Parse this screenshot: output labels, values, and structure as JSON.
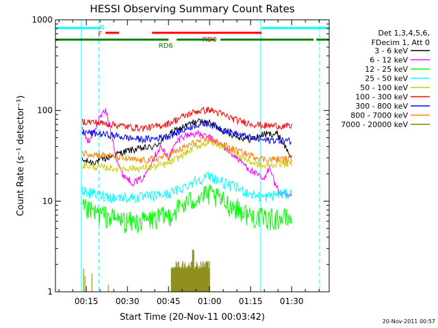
{
  "chart_data": {
    "type": "line",
    "title": "HESSI Observing Summary Count Rates",
    "xlabel": "Start Time (20-Nov-11 00:03:42)",
    "ylabel": "Count Rate (s⁻¹ detector⁻¹)",
    "y_scale": "log",
    "ylim": [
      1,
      1000
    ],
    "xlim_minutes": [
      3.7,
      103.7
    ],
    "x_tick_labels": [
      "00:15",
      "00:30",
      "00:45",
      "01:00",
      "01:15",
      "01:30"
    ],
    "x_tick_minutes": [
      15,
      30,
      45,
      60,
      75,
      90
    ],
    "y_tick_labels": [
      "1",
      "10",
      "100",
      "1000"
    ],
    "y_tick_values": [
      1,
      10,
      100,
      1000
    ],
    "legend_header": [
      "Det 1,3,4,5,6,",
      "FDecim 1, Att 0"
    ],
    "legend_position": "right",
    "series": [
      {
        "name": "3 - 6 keV",
        "color": "#000000",
        "x": [
          13.5,
          17,
          20,
          25,
          30,
          35,
          40,
          45,
          50,
          55,
          60,
          65,
          70,
          75,
          80,
          85,
          90
        ],
        "values": [
          28,
          27,
          28,
          32,
          36,
          38,
          40,
          55,
          65,
          76,
          73,
          60,
          52,
          48,
          55,
          55,
          30
        ]
      },
      {
        "name": "6 - 12 keV",
        "color": "#ff00ff",
        "x": [
          13.5,
          16,
          18,
          20,
          22,
          24,
          26,
          28,
          32,
          36,
          38,
          42,
          45,
          48,
          50,
          55,
          60,
          65,
          70,
          75,
          80,
          82,
          84,
          86,
          90
        ],
        "values": [
          60,
          45,
          60,
          85,
          100,
          60,
          30,
          20,
          16,
          18,
          25,
          40,
          30,
          45,
          52,
          56,
          50,
          40,
          30,
          22,
          17,
          25,
          15,
          12,
          11
        ]
      },
      {
        "name": "12 - 25 keV",
        "color": "#00ff00",
        "x": [
          13.5,
          18,
          25,
          30,
          35,
          40,
          45,
          50,
          55,
          60,
          65,
          70,
          75,
          80,
          85,
          90
        ],
        "values": [
          8.5,
          7.5,
          6.5,
          6,
          6,
          6.5,
          7,
          9,
          11,
          12,
          10,
          8.5,
          7,
          6.5,
          6.5,
          6.5
        ]
      },
      {
        "name": "25 - 50 keV",
        "color": "#00ffff",
        "x": [
          13.5,
          18,
          25,
          30,
          35,
          40,
          45,
          50,
          55,
          60,
          65,
          70,
          75,
          80,
          85,
          90
        ],
        "values": [
          13,
          12,
          11,
          11,
          11,
          11.5,
          12,
          14,
          17,
          19,
          16,
          14,
          12,
          11,
          12,
          12
        ]
      },
      {
        "name": "50 - 100 keV",
        "color": "#cccc00",
        "x": [
          13.5,
          18,
          25,
          30,
          35,
          40,
          45,
          50,
          55,
          60,
          65,
          70,
          75,
          80,
          85,
          90
        ],
        "values": [
          25,
          24,
          23,
          23,
          23,
          24,
          26,
          32,
          40,
          45,
          40,
          33,
          27,
          24,
          26,
          26
        ]
      },
      {
        "name": "100 - 300 keV",
        "color": "#ff0000",
        "x": [
          13.5,
          18,
          25,
          30,
          35,
          40,
          45,
          50,
          55,
          60,
          65,
          70,
          75,
          80,
          85,
          90
        ],
        "values": [
          76,
          74,
          70,
          66,
          64,
          66,
          72,
          85,
          98,
          102,
          90,
          78,
          72,
          68,
          68,
          66
        ]
      },
      {
        "name": "300 - 800 keV",
        "color": "#0000ff",
        "x": [
          13.5,
          18,
          25,
          30,
          35,
          40,
          45,
          50,
          55,
          60,
          65,
          70,
          75,
          80,
          85,
          90
        ],
        "values": [
          58,
          56,
          53,
          50,
          48,
          49,
          52,
          60,
          70,
          72,
          62,
          55,
          50,
          47,
          47,
          46
        ]
      },
      {
        "name": "800 - 7000 keV",
        "color": "#ff8000",
        "x": [
          13.5,
          18,
          25,
          30,
          35,
          40,
          45,
          50,
          55,
          60,
          65,
          70,
          75,
          80,
          85,
          90
        ],
        "values": [
          34,
          33,
          31,
          29,
          28,
          29,
          32,
          38,
          45,
          48,
          42,
          36,
          32,
          29,
          29,
          29
        ]
      },
      {
        "name": "7000 - 20000 keV",
        "color": "#808000",
        "x": [
          14,
          14.5,
          17,
          23,
          46,
          48,
          50,
          52,
          54,
          56,
          58,
          60
        ],
        "values": [
          1.8,
          1.5,
          1.6,
          1.2,
          2,
          2,
          2,
          2.2,
          2.9,
          2,
          2,
          2
        ]
      }
    ],
    "state_bars": [
      {
        "label": "N",
        "color": "#00ffff",
        "segments": [
          [
            3.7,
            20.5
          ],
          [
            79,
            103.7
          ]
        ]
      },
      {
        "label": "F",
        "color": "#ff0000",
        "segments": [
          [
            22,
            27
          ]
        ]
      },
      {
        "label": "RD0",
        "color": "#ff0000",
        "segments": [
          [
            39,
            79
          ]
        ]
      },
      {
        "label": "RD6",
        "color": "#008000",
        "segments": [
          [
            3.7,
            45
          ],
          [
            48,
            62
          ],
          [
            64,
            98
          ],
          [
            99,
            103.7
          ]
        ]
      }
    ],
    "vertical_lines": [
      {
        "minute": 13.2,
        "color": "#00ffff",
        "style": "solid"
      },
      {
        "minute": 19.5,
        "color": "#00ffff",
        "style": "dashed"
      },
      {
        "minute": 78.7,
        "color": "#00ffff",
        "style": "solid"
      },
      {
        "minute": 100.2,
        "color": "#00ffff",
        "style": "dashed"
      }
    ],
    "footer_date": "20-Nov-2011 00:57"
  }
}
